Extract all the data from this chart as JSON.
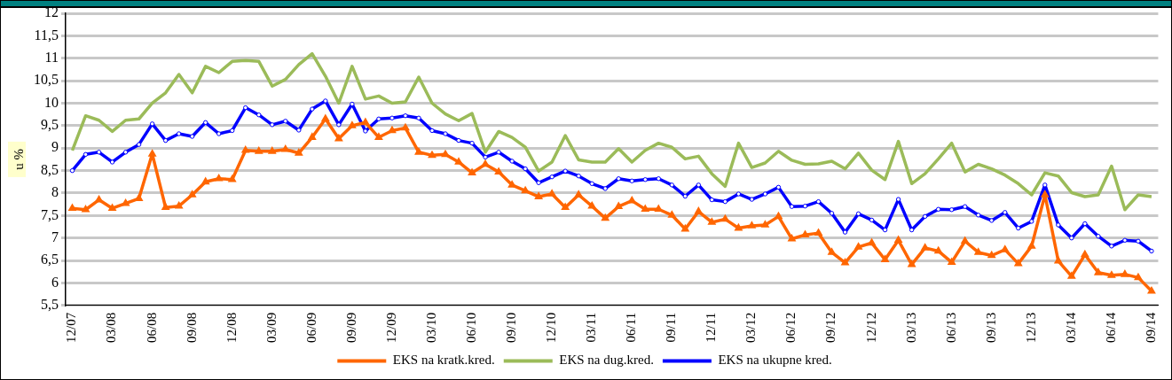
{
  "chart_data": {
    "type": "line",
    "categories": [
      "12/07",
      null,
      null,
      "03/08",
      null,
      null,
      "06/08",
      null,
      null,
      "09/08",
      null,
      null,
      "12/08",
      null,
      null,
      "03/09",
      null,
      null,
      "06/09",
      null,
      null,
      "09/09",
      null,
      null,
      "12/09",
      null,
      null,
      "03/10",
      null,
      null,
      "06/10",
      null,
      null,
      "09/10",
      null,
      null,
      "12/10",
      null,
      null,
      "03/11",
      null,
      null,
      "06/11",
      null,
      null,
      "09/11",
      null,
      null,
      "12/11",
      null,
      null,
      "03/12",
      null,
      null,
      "06/12",
      null,
      null,
      "09/12",
      null,
      null,
      "12/12",
      null,
      null,
      "03/13",
      null,
      null,
      "06/13",
      null,
      null,
      "09/13",
      null,
      null,
      "12/13",
      null,
      null,
      "03/14",
      null,
      null,
      "06/14",
      null,
      null,
      "09/14"
    ],
    "ylabel": "u %",
    "ylim": [
      5.5,
      12
    ],
    "yticks": [
      {
        "value": 5.5,
        "label": "5,5"
      },
      6,
      {
        "value": 6.5,
        "label": "6,5"
      },
      7,
      {
        "value": 7.5,
        "label": "7,5"
      },
      8,
      {
        "value": 8.5,
        "label": "8,5"
      },
      9,
      {
        "value": 9.5,
        "label": "9,5"
      },
      10,
      {
        "value": 10.5,
        "label": "10,5"
      },
      11,
      {
        "value": 11.5,
        "label": "11,5"
      },
      12
    ],
    "grid": "y",
    "legend": "bottom",
    "series": [
      {
        "name": "EKS na kratk.kred.",
        "color": "#ff6600",
        "marker": "triangle",
        "values": [
          7.66,
          7.63,
          7.85,
          7.66,
          7.77,
          7.88,
          8.87,
          7.68,
          7.71,
          7.96,
          8.25,
          8.32,
          8.3,
          8.95,
          8.93,
          8.93,
          8.97,
          8.89,
          9.24,
          9.65,
          9.21,
          9.5,
          9.57,
          9.24,
          9.39,
          9.45,
          8.91,
          8.84,
          8.86,
          8.69,
          8.45,
          8.64,
          8.47,
          8.18,
          8.05,
          7.92,
          7.98,
          7.68,
          7.96,
          7.71,
          7.44,
          7.7,
          7.83,
          7.64,
          7.64,
          7.51,
          7.2,
          7.59,
          7.35,
          7.42,
          7.22,
          7.27,
          7.29,
          7.48,
          6.98,
          7.07,
          7.11,
          6.68,
          6.45,
          6.8,
          6.89,
          6.52,
          6.95,
          6.41,
          6.78,
          6.71,
          6.46,
          6.93,
          6.68,
          6.61,
          6.74,
          6.43,
          6.82,
          7.96,
          6.49,
          6.15,
          6.63,
          6.23,
          6.17,
          6.19,
          6.12,
          5.82
        ]
      },
      {
        "name": "EKS na dug.kred.",
        "color": "#9bbb59",
        "marker": "none",
        "values": [
          8.95,
          9.72,
          9.62,
          9.37,
          9.62,
          9.65,
          10.0,
          10.23,
          10.64,
          10.23,
          10.82,
          10.68,
          10.93,
          10.95,
          10.93,
          10.38,
          10.53,
          10.86,
          11.1,
          10.6,
          10.0,
          10.82,
          10.09,
          10.16,
          10.0,
          10.03,
          10.58,
          10.0,
          9.76,
          9.61,
          9.77,
          8.91,
          9.37,
          9.24,
          9.02,
          8.49,
          8.69,
          9.28,
          8.74,
          8.69,
          8.69,
          8.99,
          8.69,
          8.95,
          9.11,
          9.02,
          8.76,
          8.82,
          8.43,
          8.15,
          9.11,
          8.57,
          8.67,
          8.93,
          8.73,
          8.64,
          8.65,
          8.71,
          8.54,
          8.89,
          8.51,
          8.3,
          9.15,
          8.21,
          8.43,
          8.76,
          9.11,
          8.47,
          8.64,
          8.54,
          8.4,
          8.21,
          7.96,
          8.45,
          8.38,
          8.01,
          7.92,
          7.96,
          8.6,
          7.63,
          7.96,
          7.92
        ]
      },
      {
        "name": "EKS na ukupne kred.",
        "color": "#0000ff",
        "marker": "circle",
        "values": [
          8.5,
          8.86,
          8.91,
          8.69,
          8.91,
          9.08,
          9.54,
          9.17,
          9.32,
          9.26,
          9.57,
          9.32,
          9.39,
          9.9,
          9.74,
          9.52,
          9.6,
          9.4,
          9.87,
          10.05,
          9.52,
          9.98,
          9.38,
          9.65,
          9.67,
          9.72,
          9.67,
          9.39,
          9.32,
          9.17,
          9.11,
          8.8,
          8.91,
          8.71,
          8.54,
          8.23,
          8.36,
          8.49,
          8.38,
          8.21,
          8.1,
          8.32,
          8.27,
          8.3,
          8.32,
          8.18,
          7.93,
          8.18,
          7.85,
          7.81,
          7.98,
          7.86,
          7.98,
          8.13,
          7.7,
          7.71,
          7.81,
          7.55,
          7.13,
          7.54,
          7.4,
          7.18,
          7.86,
          7.18,
          7.48,
          7.64,
          7.63,
          7.7,
          7.51,
          7.39,
          7.57,
          7.22,
          7.37,
          8.18,
          7.29,
          7.0,
          7.32,
          7.04,
          6.82,
          6.95,
          6.93,
          6.71
        ]
      }
    ]
  }
}
